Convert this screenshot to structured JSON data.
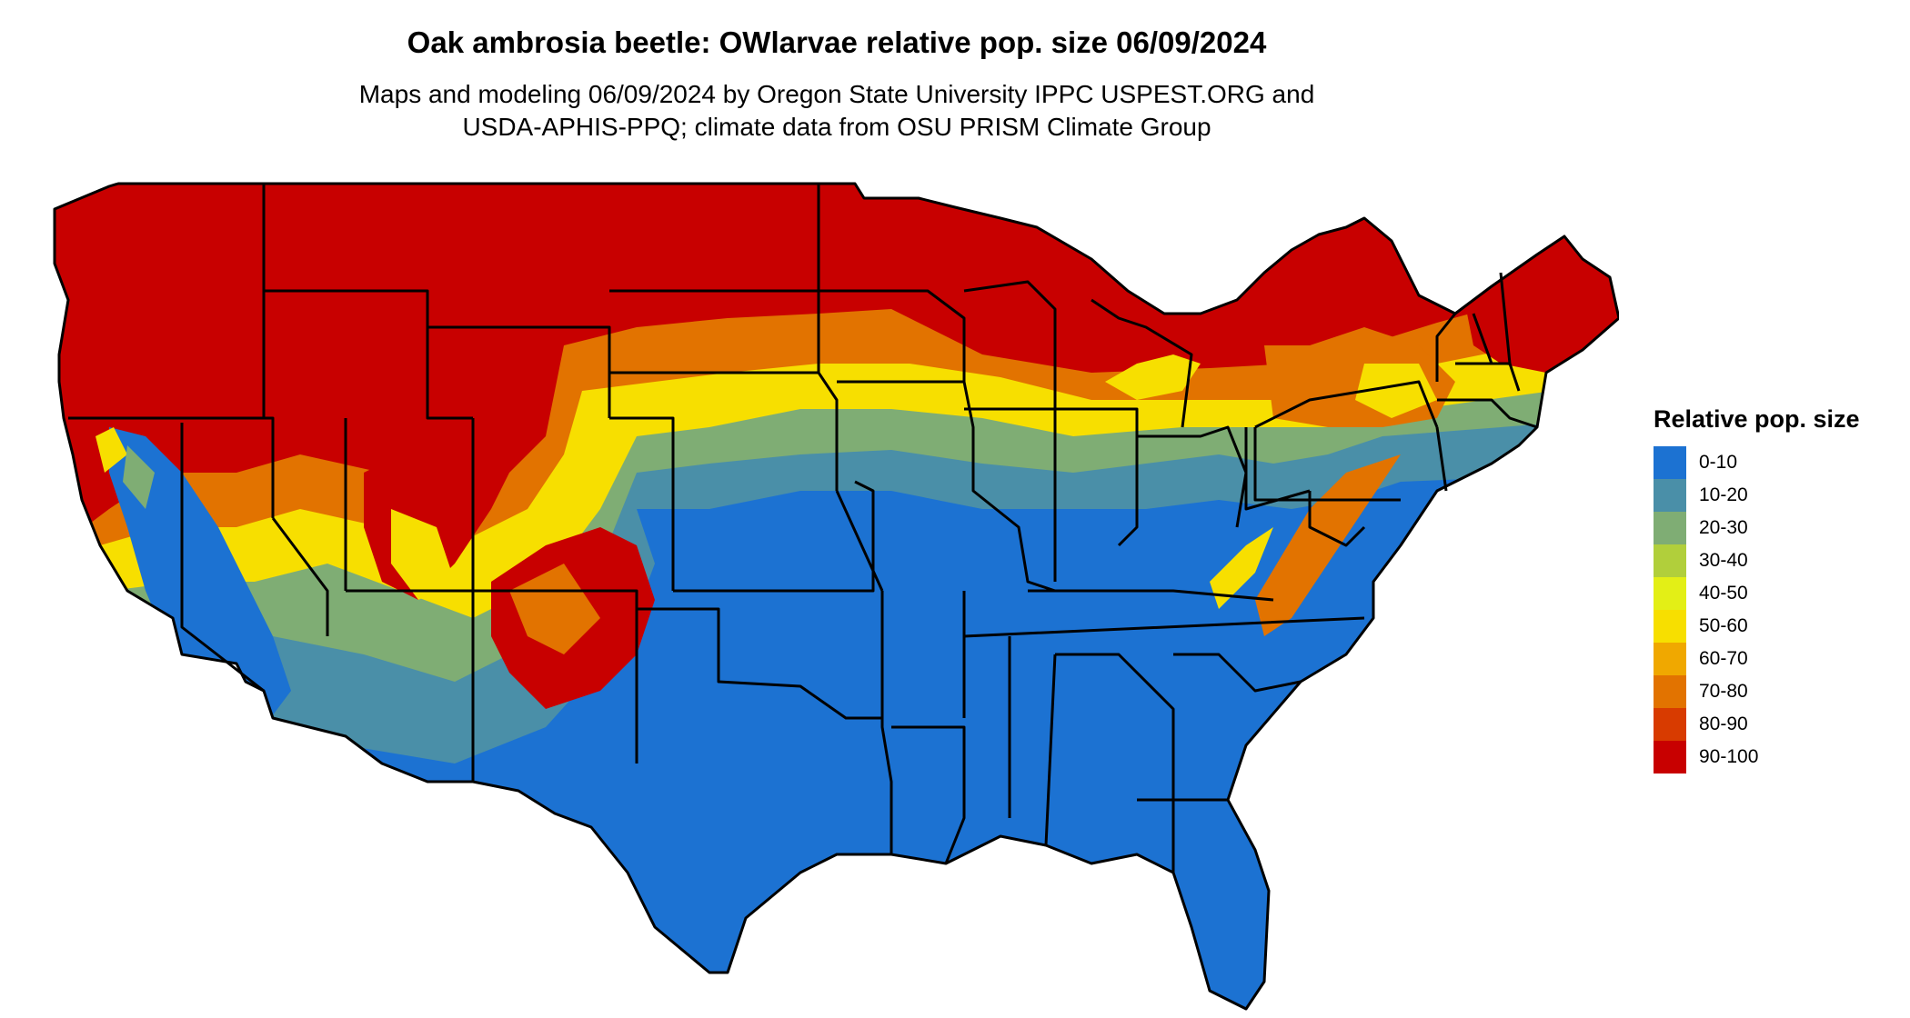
{
  "title": "Oak ambrosia beetle: OWlarvae relative pop. size 06/09/2024",
  "subtitle_line1": "Maps and modeling 06/09/2024 by Oregon State University IPPC USPEST.ORG and",
  "subtitle_line2": "USDA-APHIS-PPQ; climate data from OSU PRISM Climate Group",
  "legend": {
    "title": "Relative pop. size",
    "items": [
      {
        "label": "0-10",
        "color": "#1c72d2"
      },
      {
        "label": "10-20",
        "color": "#4a8fa8"
      },
      {
        "label": "20-30",
        "color": "#7fad74"
      },
      {
        "label": "30-40",
        "color": "#b1cf3b"
      },
      {
        "label": "40-50",
        "color": "#e3ef16"
      },
      {
        "label": "50-60",
        "color": "#f7df00"
      },
      {
        "label": "60-70",
        "color": "#f0a800"
      },
      {
        "label": "70-80",
        "color": "#e27300"
      },
      {
        "label": "80-90",
        "color": "#d83b00"
      },
      {
        "label": "90-100",
        "color": "#c80000"
      }
    ]
  }
}
